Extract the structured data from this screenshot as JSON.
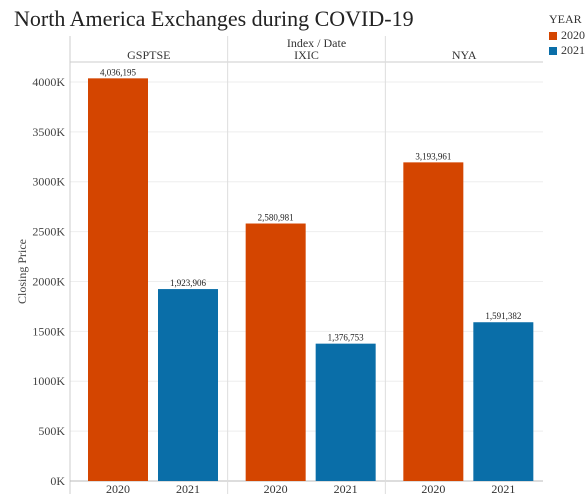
{
  "chart_data": {
    "type": "bar",
    "title": "North America Exchanges during COVID-19",
    "column_header": "Index  /  Date",
    "ylabel": "Closing Price",
    "ylim": [
      0,
      4200000
    ],
    "yticks": [
      0,
      500000,
      1000000,
      1500000,
      2000000,
      2500000,
      3000000,
      3500000,
      4000000
    ],
    "ytick_labels": [
      "0K",
      "500K",
      "1000K",
      "1500K",
      "2000K",
      "2500K",
      "3000K",
      "3500K",
      "4000K"
    ],
    "grid": true,
    "legend": {
      "title": "YEAR",
      "position": "top-right",
      "items": [
        {
          "label": "2020",
          "color": "#d44500"
        },
        {
          "label": "2021",
          "color": "#0a6ea8"
        }
      ]
    },
    "panels": [
      {
        "name": "GSPTSE",
        "bars": [
          {
            "category": "2020",
            "value": 4036195,
            "label": "4,036,195",
            "color": "#d44500"
          },
          {
            "category": "2021",
            "value": 1923906,
            "label": "1,923,906",
            "color": "#0a6ea8"
          }
        ]
      },
      {
        "name": "IXIC",
        "bars": [
          {
            "category": "2020",
            "value": 2580981,
            "label": "2,580,981",
            "color": "#d44500"
          },
          {
            "category": "2021",
            "value": 1376753,
            "label": "1,376,753",
            "color": "#0a6ea8"
          }
        ]
      },
      {
        "name": "NYA",
        "bars": [
          {
            "category": "2020",
            "value": 3193961,
            "label": "3,193,961",
            "color": "#d44500"
          },
          {
            "category": "2021",
            "value": 1591382,
            "label": "1,591,382",
            "color": "#0a6ea8"
          }
        ]
      }
    ]
  }
}
